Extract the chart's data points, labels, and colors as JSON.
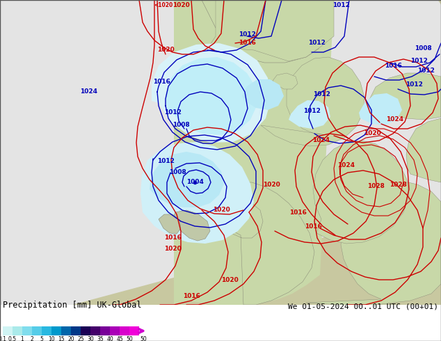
{
  "title_left": "Precipitation [mm] UK-Global",
  "title_right": "We 01-05-2024 00..01 UTC (00+01)",
  "bg_color": "#b8b8a0",
  "land_color": "#c8c8a0",
  "white_area_color": "#e8e8e8",
  "light_green_color": "#c8d8a8",
  "precip_light_cyan": "#b0e8f0",
  "precip_cyan": "#80d8f0",
  "precip_blue": "#5090c0",
  "blue_contour": "#0000bb",
  "red_contour": "#cc0000",
  "figw": 6.34,
  "figh": 4.9,
  "dpi": 100,
  "cbar_colors": [
    "#d0f4f4",
    "#aaeaea",
    "#80dded",
    "#55cce8",
    "#28b8e0",
    "#0099cc",
    "#0066aa",
    "#003888",
    "#1a0055",
    "#44006a",
    "#780098",
    "#aa00b8",
    "#d800cc",
    "#f000d8"
  ],
  "cbar_labels": [
    "0.1",
    "0.5",
    "1",
    "2",
    "5",
    "10",
    "15",
    "20",
    "25",
    "30",
    "35",
    "40",
    "45",
    "50"
  ],
  "font_mono": "DejaVu Sans Mono"
}
